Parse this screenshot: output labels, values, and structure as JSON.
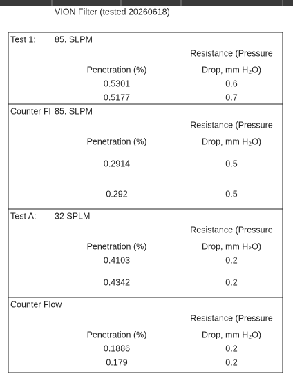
{
  "header": {
    "title": "VION Filter (tested 20260618)"
  },
  "sections": [
    {
      "label": "Test 1:",
      "flow": "85. SLPM",
      "resistance_header": [
        "Resistance (Pressure",
        "Drop, mm H₂O)"
      ],
      "penetration_header": "Penetration (%)",
      "rows": [
        [
          "0.5301",
          "0.6"
        ],
        [
          "0.5177",
          "0.7"
        ]
      ]
    },
    {
      "label": "Counter Fl",
      "flow": "85. SLPM",
      "resistance_header": [
        "Resistance (Pressure",
        "Drop, mm H₂O)"
      ],
      "penetration_header": "Penetration (%)",
      "rows": [
        [
          "0.2914",
          "0.5"
        ],
        [
          "0.292",
          "0.5"
        ]
      ]
    },
    {
      "label": "Test A:",
      "flow": "32 SPLM",
      "resistance_header": [
        "Resistance (Pressure",
        "Drop, mm H₂O)"
      ],
      "penetration_header": "Penetration (%)",
      "rows": [
        [
          "0.4103",
          "0.2"
        ],
        [
          "0.4342",
          "0.2"
        ]
      ]
    },
    {
      "label": "Counter Flow",
      "resistance_header": [
        "Resistance (Pressure",
        "Drop, mm H₂O)"
      ],
      "penetration_header": "Penetration (%)",
      "rows": [
        [
          "0.1886",
          "0.2"
        ],
        [
          "0.179",
          "0.2"
        ]
      ]
    }
  ]
}
